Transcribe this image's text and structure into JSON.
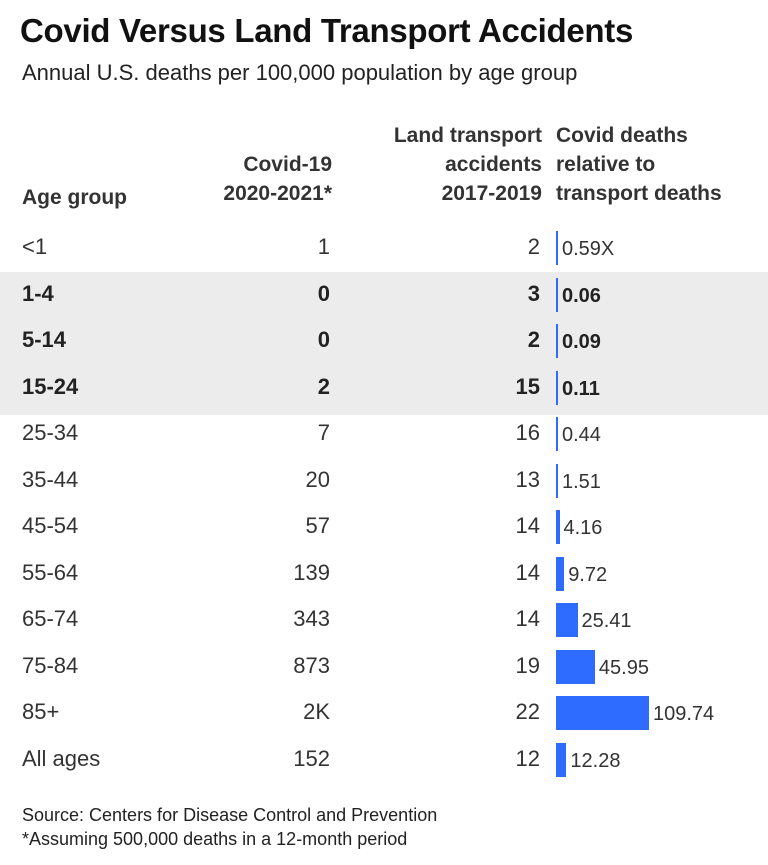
{
  "header": {
    "title": "Covid Versus Land Transport Accidents",
    "subtitle": "Annual U.S. deaths per 100,000 population by age group"
  },
  "columns": {
    "age": "Age group",
    "covid_line1": "Covid-19",
    "covid_line2": "2020-2021*",
    "land_line1": "Land transport",
    "land_line2": "accidents",
    "land_line3": "2017-2019",
    "ratio_line1": "Covid deaths",
    "ratio_line2": "relative to",
    "ratio_line3": "transport deaths"
  },
  "footer": {
    "source": "Source: Centers for Disease Control and Prevention",
    "note": "*Assuming 500,000 deaths in a 12-month period"
  },
  "colors": {
    "bar": "#2e6bff",
    "highlight_band": "#ececec"
  },
  "chart_data": {
    "type": "table",
    "title": "Covid Versus Land Transport Accidents",
    "subtitle": "Annual U.S. deaths per 100,000 population by age group",
    "max_ratio": 109.74,
    "highlighted_groups": [
      "1-4",
      "5-14",
      "15-24"
    ],
    "rows": [
      {
        "age": "<1",
        "covid": "1",
        "land": "2",
        "ratio": 0.59,
        "ratio_label": "0.59X",
        "bold": false
      },
      {
        "age": "1-4",
        "covid": "0",
        "land": "3",
        "ratio": 0.06,
        "ratio_label": "0.06",
        "bold": true
      },
      {
        "age": "5-14",
        "covid": "0",
        "land": "2",
        "ratio": 0.09,
        "ratio_label": "0.09",
        "bold": true
      },
      {
        "age": "15-24",
        "covid": "2",
        "land": "15",
        "ratio": 0.11,
        "ratio_label": "0.11",
        "bold": true
      },
      {
        "age": "25-34",
        "covid": "7",
        "land": "16",
        "ratio": 0.44,
        "ratio_label": "0.44",
        "bold": false
      },
      {
        "age": "35-44",
        "covid": "20",
        "land": "13",
        "ratio": 1.51,
        "ratio_label": "1.51",
        "bold": false
      },
      {
        "age": "45-54",
        "covid": "57",
        "land": "14",
        "ratio": 4.16,
        "ratio_label": "4.16",
        "bold": false
      },
      {
        "age": "55-64",
        "covid": "139",
        "land": "14",
        "ratio": 9.72,
        "ratio_label": "9.72",
        "bold": false
      },
      {
        "age": "65-74",
        "covid": "343",
        "land": "14",
        "ratio": 25.41,
        "ratio_label": "25.41",
        "bold": false
      },
      {
        "age": "75-84",
        "covid": "873",
        "land": "19",
        "ratio": 45.95,
        "ratio_label": "45.95",
        "bold": false
      },
      {
        "age": "85+",
        "covid": "2K",
        "land": "22",
        "ratio": 109.74,
        "ratio_label": "109.74",
        "bold": false
      },
      {
        "age": "All ages",
        "covid": "152",
        "land": "12",
        "ratio": 12.28,
        "ratio_label": "12.28",
        "bold": false
      }
    ]
  }
}
